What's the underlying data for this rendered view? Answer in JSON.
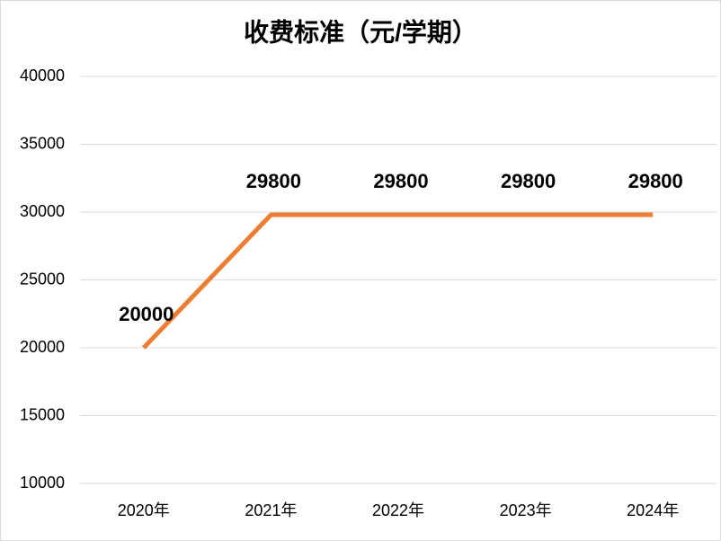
{
  "chart_data": {
    "type": "line",
    "title": "收费标准（元/学期）",
    "categories": [
      "2020年",
      "2021年",
      "2022年",
      "2023年",
      "2024年"
    ],
    "values": [
      20000,
      29800,
      29800,
      29800,
      29800
    ],
    "color": "#ed7d31",
    "ylim": [
      10000,
      40000
    ],
    "yticks": [
      10000,
      15000,
      20000,
      25000,
      30000,
      35000,
      40000
    ],
    "grid": true
  }
}
